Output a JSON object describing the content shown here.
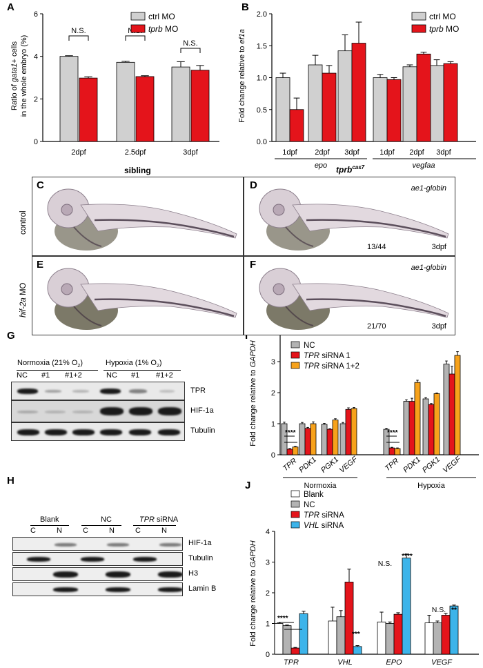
{
  "panel_labels": {
    "A": "A",
    "B": "B",
    "C": "C",
    "D": "D",
    "E": "E",
    "F": "F",
    "G": "G",
    "H": "H",
    "I": "I",
    "J": "J"
  },
  "panelA": {
    "ylabel_line1": "Ratio of ",
    "ylabel_gene": "gata1",
    "ylabel_rest": "+ cells",
    "ylabel_line2": "in the whole embryo (%)",
    "legend": [
      {
        "name": "ctrl MO",
        "color": "#d0d0d0"
      },
      {
        "name_it": "tprb",
        "name": " MO",
        "color": "#e4141b"
      }
    ],
    "sig": [
      "N.S.",
      "N.S.",
      "N.S."
    ],
    "yticks": [
      "0",
      "2",
      "4",
      "6"
    ]
  },
  "panelB": {
    "ylabel_pre": "Fold change relative to ",
    "ylabel_gene": "ef1a",
    "group_labels": [
      "epo",
      "vegfaa"
    ],
    "yticks": [
      "0.0",
      "0.5",
      "1.0",
      "1.5",
      "2.0"
    ]
  },
  "panelCF": {
    "col1": "sibling",
    "col2_gene": "tprb",
    "col2_sup": "cas7",
    "row1": "control",
    "row2_it": "hif-2a",
    "row2": " MO",
    "probe": "ae1-globin",
    "countD": "13/44",
    "countF": "21/70",
    "stage": "3dpf"
  },
  "panelG": {
    "normoxia": "Normoxia (21% O",
    "hypoxia": "Hypoxia (1% O",
    "sub2": "2",
    "close": ")",
    "lanes": [
      "NC",
      "#1",
      "#1+2",
      "NC",
      "#1",
      "#1+2"
    ],
    "proteins": [
      "TPR",
      "HIF-1a",
      "Tubulin"
    ]
  },
  "panelH": {
    "groups": [
      "Blank",
      "NC",
      "TPR siRNA"
    ],
    "fractions": [
      "C",
      "N",
      "C",
      "N",
      "C",
      "N"
    ],
    "proteins": [
      "HIF-1a",
      "Tubulin",
      "H3",
      "Lamin B"
    ]
  },
  "panelI": {
    "ylabel_pre": "Fold change relative to ",
    "ylabel_gene": "GAPDH",
    "legend": [
      {
        "name": "NC",
        "color": "#b3b3b3"
      },
      {
        "name_it": "TPR",
        "name": " siRNA 1",
        "color": "#e4141b"
      },
      {
        "name_it": "TPR",
        "name": " siRNA 1+2",
        "color": "#f7a21b"
      }
    ],
    "genes": [
      "TPR",
      "PDK1",
      "PGK1",
      "VEGF"
    ],
    "conditions": [
      "Normoxia",
      "Hypoxia"
    ],
    "sig": [
      "****",
      "****"
    ],
    "yticks": [
      "0",
      "1",
      "2",
      "3",
      "4"
    ]
  },
  "panelJ": {
    "ylabel_pre": "Fold change relative to ",
    "ylabel_gene": "GAPDH",
    "legend": [
      {
        "name": "Blank",
        "color": "#ffffff"
      },
      {
        "name": "NC",
        "color": "#b3b3b3"
      },
      {
        "name_it": "TPR",
        "name": " siRNA",
        "color": "#e4141b"
      },
      {
        "name_it": "VHL",
        "name": " siRNA",
        "color": "#3db4ea"
      }
    ],
    "genes": [
      "TPR",
      "VHL",
      "EPO",
      "VEGF"
    ],
    "sig": [
      "****",
      "***",
      "N.S.",
      "****",
      "N.S.",
      "**"
    ],
    "yticks": [
      "0",
      "1",
      "2",
      "3",
      "4"
    ]
  },
  "chart_data": [
    {
      "type": "bar",
      "panel": "A",
      "categories": [
        "2dpf",
        "2.5dpf",
        "3dpf"
      ],
      "series": [
        {
          "name": "ctrl MO",
          "values": [
            4.0,
            3.72,
            3.5
          ],
          "errors": [
            0.03,
            0.05,
            0.25
          ]
        },
        {
          "name": "tprb MO",
          "values": [
            2.98,
            3.05,
            3.35
          ],
          "errors": [
            0.06,
            0.04,
            0.22
          ]
        }
      ],
      "ylim": [
        0,
        6
      ]
    },
    {
      "type": "bar",
      "panel": "B",
      "categories": [
        "1dpf",
        "2dpf",
        "3dpf",
        "1dpf",
        "2dpf",
        "3dpf"
      ],
      "groups": [
        "epo",
        "epo",
        "epo",
        "vegfaa",
        "vegfaa",
        "vegfaa"
      ],
      "series": [
        {
          "name": "ctrl MO",
          "values": [
            1.0,
            1.2,
            1.42,
            1.0,
            1.17,
            1.19
          ],
          "errors": [
            0.07,
            0.15,
            0.25,
            0.05,
            0.03,
            0.09
          ]
        },
        {
          "name": "tprb MO",
          "values": [
            0.5,
            1.07,
            1.54,
            0.97,
            1.37,
            1.22
          ],
          "errors": [
            0.18,
            0.12,
            0.33,
            0.03,
            0.03,
            0.03
          ]
        }
      ],
      "ylim": [
        0,
        2.0
      ]
    },
    {
      "type": "bar",
      "panel": "I",
      "categories": [
        "TPR",
        "PDK1",
        "PGK1",
        "VEGF",
        "TPR",
        "PDK1",
        "PGK1",
        "VEGF"
      ],
      "groups": [
        "Normoxia",
        "Normoxia",
        "Normoxia",
        "Normoxia",
        "Hypoxia",
        "Hypoxia",
        "Hypoxia",
        "Hypoxia"
      ],
      "series": [
        {
          "name": "NC",
          "values": [
            1.0,
            1.0,
            0.98,
            1.0,
            0.82,
            1.72,
            1.8,
            2.92
          ],
          "errors": [
            0.05,
            0.04,
            0.03,
            0.04,
            0.03,
            0.05,
            0.04,
            0.1
          ]
        },
        {
          "name": "TPR siRNA 1",
          "values": [
            0.18,
            0.85,
            0.82,
            1.46,
            0.22,
            1.72,
            1.62,
            2.6
          ],
          "errors": [
            0.02,
            0.03,
            0.02,
            0.05,
            0.02,
            0.1,
            0.03,
            0.25
          ]
        },
        {
          "name": "TPR siRNA 1+2",
          "values": [
            0.25,
            1.0,
            1.12,
            1.49,
            0.2,
            2.33,
            1.97,
            3.2
          ],
          "errors": [
            0.02,
            0.06,
            0.04,
            0.03,
            0.02,
            0.07,
            0.02,
            0.12
          ]
        }
      ],
      "ylim": [
        0,
        4
      ]
    },
    {
      "type": "bar",
      "panel": "J",
      "categories": [
        "TPR",
        "VHL",
        "EPO",
        "VEGF"
      ],
      "series": [
        {
          "name": "Blank",
          "values": [
            1.0,
            1.08,
            1.05,
            1.02
          ],
          "errors": [
            0.02,
            0.45,
            0.32,
            0.25
          ]
        },
        {
          "name": "NC",
          "values": [
            0.93,
            1.22,
            1.0,
            1.02
          ],
          "errors": [
            0.02,
            0.2,
            0.05,
            0.06
          ]
        },
        {
          "name": "TPR siRNA",
          "values": [
            0.2,
            2.35,
            1.3,
            1.27
          ],
          "errors": [
            0.02,
            0.42,
            0.05,
            0.06
          ]
        },
        {
          "name": "VHL siRNA",
          "values": [
            1.32,
            0.25,
            3.13,
            1.57
          ],
          "errors": [
            0.08,
            0.03,
            0.13,
            0.03
          ]
        }
      ],
      "ylim": [
        0,
        4
      ]
    }
  ]
}
